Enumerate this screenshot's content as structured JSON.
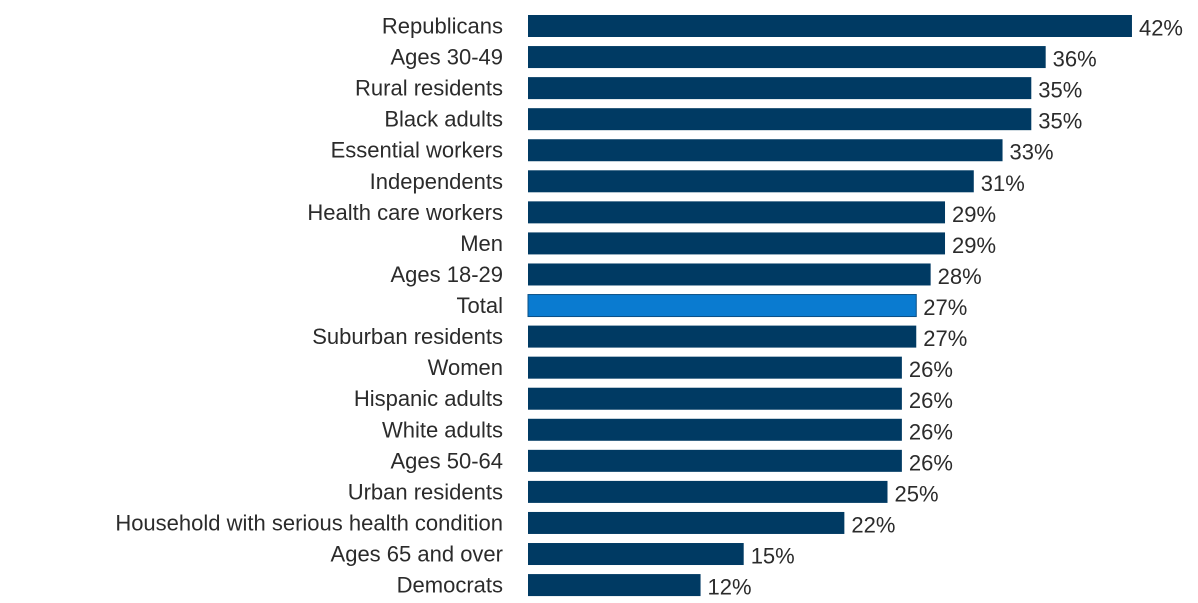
{
  "chart_data": {
    "type": "bar",
    "orientation": "horizontal",
    "title": "",
    "xlabel": "",
    "ylabel": "",
    "xlim": [
      0,
      42
    ],
    "grid": false,
    "legend": "none",
    "value_suffix": "%",
    "categories": [
      "Republicans",
      "Ages 30-49",
      "Rural residents",
      "Black adults",
      "Essential workers",
      "Independents",
      "Health care workers",
      "Men",
      "Ages 18-29",
      "Total",
      "Suburban residents",
      "Women",
      "Hispanic adults",
      "White adults",
      "Ages 50-64",
      "Urban residents",
      "Household with serious health condition",
      "Ages 65 and over",
      "Democrats"
    ],
    "values": [
      42,
      36,
      35,
      35,
      33,
      31,
      29,
      29,
      28,
      27,
      27,
      26,
      26,
      26,
      26,
      25,
      22,
      15,
      12
    ],
    "value_labels": [
      "42%",
      "36%",
      "35%",
      "35%",
      "33%",
      "31%",
      "29%",
      "29%",
      "28%",
      "27%",
      "27%",
      "26%",
      "26%",
      "26%",
      "26%",
      "25%",
      "22%",
      "15%",
      "12%"
    ],
    "highlight_category": "Total",
    "colors": {
      "bar": "#003a63",
      "highlight": "#0a7bd0",
      "highlight_stroke": "#0a4f86",
      "text": "#2b2b2b"
    }
  }
}
